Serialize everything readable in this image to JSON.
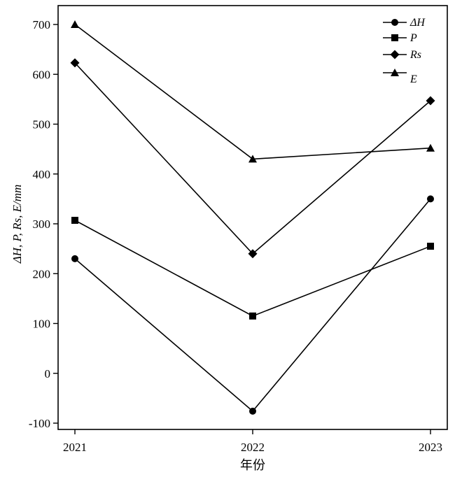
{
  "chart_data": {
    "type": "line",
    "x": [
      "2021",
      "2022",
      "2023"
    ],
    "xlabel": "年份",
    "ylabel": "ΔH, P, Rs, E/mm",
    "ylim": [
      -100,
      700
    ],
    "yticks": [
      -100,
      0,
      100,
      200,
      300,
      400,
      500,
      600,
      700
    ],
    "grid": false,
    "legend_position": "top-right",
    "series": [
      {
        "name": "ΔH",
        "marker": "circle",
        "values": [
          230,
          -76,
          350
        ]
      },
      {
        "name": "P",
        "marker": "square",
        "values": [
          307,
          115,
          255
        ]
      },
      {
        "name": "Rs",
        "marker": "diamond",
        "values": [
          623,
          240,
          547
        ]
      },
      {
        "name": "E",
        "marker": "triangle",
        "values": [
          700,
          430,
          452
        ]
      }
    ],
    "colors": {
      "line": "#000000",
      "marker": "#000000"
    }
  }
}
